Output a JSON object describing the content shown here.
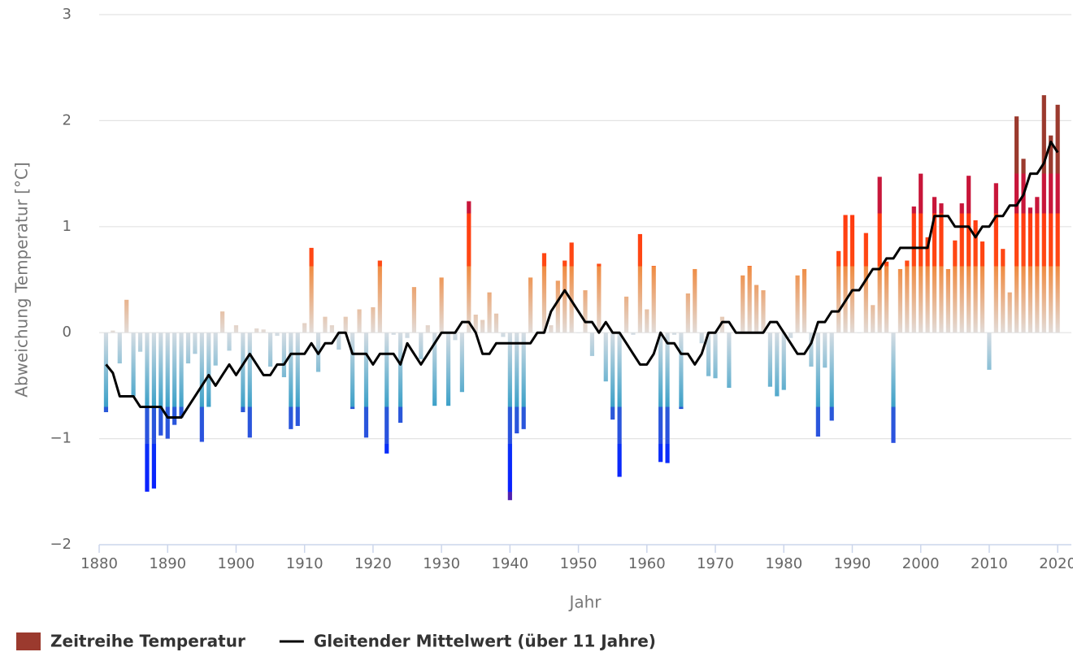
{
  "chart_data": {
    "type": "bar-line",
    "x_label": "Jahr",
    "y_label": "Abweichung Temperatur [°C]",
    "xlim": [
      1880,
      2022
    ],
    "xticks": [
      1880,
      1890,
      1900,
      1910,
      1920,
      1930,
      1940,
      1950,
      1960,
      1970,
      1980,
      1990,
      2000,
      2010,
      2020
    ],
    "ylim": [
      -2,
      3
    ],
    "yticks": [
      {
        "value": -2,
        "label": "−2"
      },
      {
        "value": -1,
        "label": "−1"
      },
      0,
      1,
      2,
      3
    ],
    "grid": true,
    "legend": "bottom-left",
    "x": [
      1881,
      1882,
      1883,
      1884,
      1885,
      1886,
      1887,
      1888,
      1889,
      1890,
      1891,
      1892,
      1893,
      1894,
      1895,
      1896,
      1897,
      1898,
      1899,
      1900,
      1901,
      1902,
      1903,
      1904,
      1905,
      1906,
      1907,
      1908,
      1909,
      1910,
      1911,
      1912,
      1913,
      1914,
      1915,
      1916,
      1917,
      1918,
      1919,
      1920,
      1921,
      1922,
      1923,
      1924,
      1925,
      1926,
      1927,
      1928,
      1929,
      1930,
      1931,
      1932,
      1933,
      1934,
      1935,
      1936,
      1937,
      1938,
      1939,
      1940,
      1941,
      1942,
      1943,
      1944,
      1945,
      1946,
      1947,
      1948,
      1949,
      1950,
      1951,
      1952,
      1953,
      1954,
      1955,
      1956,
      1957,
      1958,
      1959,
      1960,
      1961,
      1962,
      1963,
      1964,
      1965,
      1966,
      1967,
      1968,
      1969,
      1970,
      1971,
      1972,
      1973,
      1974,
      1975,
      1976,
      1977,
      1978,
      1979,
      1980,
      1981,
      1982,
      1983,
      1984,
      1985,
      1986,
      1987,
      1988,
      1989,
      1990,
      1991,
      1992,
      1993,
      1994,
      1995,
      1996,
      1997,
      1998,
      1999,
      2000,
      2001,
      2002,
      2003,
      2004,
      2005,
      2006,
      2007,
      2008,
      2009,
      2010,
      2011,
      2012,
      2013,
      2014,
      2015,
      2016,
      2017,
      2018,
      2019,
      2020
    ],
    "series": [
      {
        "name": "Zeitreihe Temperatur",
        "type": "bar",
        "color": "#9b3a2e",
        "values": [
          -0.75,
          0.02,
          -0.29,
          0.31,
          -0.6,
          -0.18,
          -1.5,
          -1.47,
          -0.97,
          -1.0,
          -0.87,
          -0.8,
          -0.29,
          -0.2,
          -1.03,
          -0.7,
          -0.31,
          0.2,
          -0.17,
          0.07,
          -0.75,
          -0.99,
          0.04,
          0.03,
          -0.32,
          -0.03,
          -0.42,
          -0.91,
          -0.88,
          0.09,
          0.8,
          -0.37,
          0.15,
          0.07,
          -0.16,
          0.15,
          -0.72,
          0.22,
          -0.99,
          0.24,
          0.68,
          -1.14,
          -0.02,
          -0.85,
          -0.05,
          0.43,
          -0.25,
          0.07,
          -0.69,
          0.52,
          -0.69,
          -0.07,
          -0.56,
          1.24,
          0.17,
          0.12,
          0.38,
          0.18,
          -0.04,
          -1.58,
          -0.95,
          -0.91,
          0.52,
          0.0,
          0.75,
          0.07,
          0.49,
          0.68,
          0.85,
          0.0,
          0.4,
          -0.22,
          0.65,
          -0.46,
          -0.82,
          -1.36,
          0.34,
          -0.02,
          0.93,
          0.22,
          0.63,
          -1.22,
          -1.23,
          -0.02,
          -0.72,
          0.37,
          0.6,
          -0.1,
          -0.41,
          -0.43,
          0.15,
          -0.52,
          0.0,
          0.54,
          0.63,
          0.45,
          0.4,
          -0.51,
          -0.6,
          -0.54,
          -0.05,
          0.54,
          0.6,
          -0.32,
          -0.98,
          -0.33,
          -0.83,
          0.77,
          1.11,
          1.11,
          0.0,
          0.94,
          0.26,
          1.47,
          0.67,
          -1.04,
          0.6,
          0.68,
          1.19,
          1.5,
          0.9,
          1.28,
          1.22,
          0.6,
          0.87,
          1.22,
          1.48,
          1.06,
          0.86,
          -0.35,
          1.41,
          0.79,
          0.38,
          2.04,
          1.64,
          1.18,
          1.28,
          2.24,
          1.86,
          2.15
        ]
      },
      {
        "name": "Gleitender Mittelwert (über 11 Jahre)",
        "type": "line",
        "color": "#000000",
        "values": [
          -0.3,
          -0.38,
          -0.6,
          -0.6,
          -0.6,
          -0.7,
          -0.7,
          -0.7,
          -0.7,
          -0.8,
          -0.8,
          -0.8,
          -0.7,
          -0.6,
          -0.5,
          -0.4,
          -0.5,
          -0.4,
          -0.3,
          -0.4,
          -0.3,
          -0.2,
          -0.3,
          -0.4,
          -0.4,
          -0.3,
          -0.3,
          -0.2,
          -0.2,
          -0.2,
          -0.1,
          -0.2,
          -0.1,
          -0.1,
          0.0,
          0.0,
          -0.2,
          -0.2,
          -0.2,
          -0.3,
          -0.2,
          -0.2,
          -0.2,
          -0.3,
          -0.1,
          -0.2,
          -0.3,
          -0.2,
          -0.1,
          0.0,
          0.0,
          0.0,
          0.1,
          0.1,
          0.0,
          -0.2,
          -0.2,
          -0.1,
          -0.1,
          -0.1,
          -0.1,
          -0.1,
          -0.1,
          0.0,
          0.0,
          0.2,
          0.3,
          0.4,
          0.3,
          0.2,
          0.1,
          0.1,
          0.0,
          0.1,
          0.0,
          0.0,
          -0.1,
          -0.2,
          -0.3,
          -0.3,
          -0.2,
          0.0,
          -0.1,
          -0.1,
          -0.2,
          -0.2,
          -0.3,
          -0.2,
          0.0,
          0.0,
          0.1,
          0.1,
          0.0,
          0.0,
          0.0,
          0.0,
          0.0,
          0.1,
          0.1,
          0.0,
          -0.1,
          -0.2,
          -0.2,
          -0.1,
          0.1,
          0.1,
          0.2,
          0.2,
          0.3,
          0.4,
          0.4,
          0.5,
          0.6,
          0.6,
          0.7,
          0.7,
          0.8,
          0.8,
          0.8,
          0.8,
          0.8,
          1.1,
          1.1,
          1.1,
          1.0,
          1.0,
          1.0,
          0.9,
          1.0,
          1.0,
          1.1,
          1.1,
          1.2,
          1.2,
          1.3,
          1.5,
          1.5,
          1.6,
          1.8,
          1.7
        ]
      }
    ]
  }
}
